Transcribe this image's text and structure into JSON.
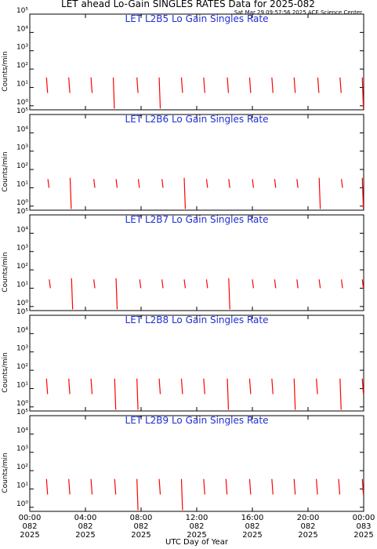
{
  "title": "LET ahead Lo-Gain SINGLES RATES Data for 2025-082",
  "timestamp": "Sat Mar 29 09:57:56 2025 ACE Science Center",
  "xlabel": "UTC Day of Year",
  "chart_data": [
    {
      "type": "line",
      "title": "LET L2B5 Lo Gain Singles Rate",
      "ylabel": "Counts/min",
      "color": "#ff0000",
      "log_y": true,
      "xlim": [
        0,
        24
      ],
      "xticks": [
        0,
        4,
        8,
        12,
        16,
        20,
        24
      ],
      "ylim": [
        0.6,
        100000
      ],
      "yticks": [
        {
          "value": 1,
          "label": "10⁰"
        },
        {
          "value": 10,
          "label": "10¹"
        },
        {
          "value": 100,
          "label": "10²"
        },
        {
          "value": 1000,
          "label": "10³"
        },
        {
          "value": 10000,
          "label": "10⁴"
        },
        {
          "value": 100000,
          "label": "10⁵"
        }
      ],
      "x": [
        1.2,
        1.28,
        1.28,
        2.8,
        2.88,
        2.88,
        4.4,
        4.48,
        4.48,
        6.0,
        6.08,
        6.08,
        7.7,
        7.78,
        7.78,
        9.3,
        9.38,
        9.38,
        10.9,
        10.98,
        10.98,
        12.5,
        12.58,
        12.58,
        14.2,
        14.28,
        14.28,
        15.8,
        15.88,
        15.88,
        17.4,
        17.48,
        17.48,
        19.0,
        19.08,
        19.08,
        20.7,
        20.78,
        20.78,
        22.3,
        22.38,
        22.38,
        23.9,
        23.98,
        23.98
      ],
      "values": [
        35,
        5,
        null,
        35,
        5,
        null,
        35,
        5,
        null,
        35,
        0.7,
        null,
        35,
        5,
        null,
        35,
        0.7,
        null,
        35,
        5,
        null,
        35,
        5,
        null,
        35,
        5,
        null,
        35,
        5,
        null,
        35,
        5,
        null,
        35,
        5,
        null,
        35,
        5,
        null,
        35,
        5,
        null,
        35,
        0.7,
        null
      ]
    },
    {
      "type": "line",
      "title": "LET L2B6 Lo Gain Singles Rate",
      "ylabel": "Counts/min",
      "color": "#ff0000",
      "log_y": true,
      "xlim": [
        0,
        24
      ],
      "xticks": [
        0,
        4,
        8,
        12,
        16,
        20,
        24
      ],
      "ylim": [
        0.6,
        100000
      ],
      "yticks": [
        {
          "value": 1,
          "label": "10⁰"
        },
        {
          "value": 10,
          "label": "10¹"
        },
        {
          "value": 100,
          "label": "10²"
        },
        {
          "value": 1000,
          "label": "10³"
        },
        {
          "value": 10000,
          "label": "10⁴"
        },
        {
          "value": 100000,
          "label": "10⁵"
        }
      ],
      "x": [
        1.3,
        1.38,
        1.38,
        2.9,
        2.98,
        2.98,
        4.6,
        4.68,
        4.68,
        6.2,
        6.28,
        6.28,
        7.8,
        7.88,
        7.88,
        9.5,
        9.58,
        9.58,
        11.1,
        11.18,
        11.18,
        12.7,
        12.78,
        12.78,
        14.3,
        14.38,
        14.38,
        16.0,
        16.08,
        16.08,
        17.6,
        17.68,
        17.68,
        19.2,
        19.28,
        19.28,
        20.8,
        20.88,
        20.88,
        22.4,
        22.48,
        22.48,
        23.9,
        23.98,
        23.98
      ],
      "values": [
        30,
        10,
        null,
        35,
        0.7,
        null,
        30,
        10,
        null,
        30,
        10,
        null,
        30,
        10,
        null,
        30,
        10,
        null,
        35,
        0.7,
        null,
        30,
        10,
        null,
        30,
        10,
        null,
        30,
        10,
        null,
        30,
        10,
        null,
        30,
        10,
        null,
        35,
        0.7,
        null,
        30,
        10,
        null,
        35,
        0.7,
        null
      ]
    },
    {
      "type": "line",
      "title": "LET L2B7 Lo Gain Singles Rate",
      "ylabel": "Counts/min",
      "color": "#ff0000",
      "log_y": true,
      "xlim": [
        0,
        24
      ],
      "xticks": [
        0,
        4,
        8,
        12,
        16,
        20,
        24
      ],
      "ylim": [
        0.6,
        100000
      ],
      "yticks": [
        {
          "value": 1,
          "label": "10⁰"
        },
        {
          "value": 10,
          "label": "10¹"
        },
        {
          "value": 100,
          "label": "10²"
        },
        {
          "value": 1000,
          "label": "10³"
        },
        {
          "value": 10000,
          "label": "10⁴"
        },
        {
          "value": 100000,
          "label": "10⁵"
        }
      ],
      "x": [
        1.4,
        1.48,
        1.48,
        3.0,
        3.08,
        3.08,
        4.6,
        4.68,
        4.68,
        6.2,
        6.28,
        6.28,
        7.9,
        7.98,
        7.98,
        9.5,
        9.58,
        9.58,
        11.1,
        11.18,
        11.18,
        12.7,
        12.78,
        12.78,
        14.3,
        14.38,
        14.38,
        16.0,
        16.08,
        16.08,
        17.6,
        17.68,
        17.68,
        19.2,
        19.28,
        19.28,
        20.8,
        20.88,
        20.88,
        22.4,
        22.48,
        22.48,
        23.9,
        23.98,
        23.98
      ],
      "values": [
        30,
        10,
        null,
        35,
        0.7,
        null,
        30,
        10,
        null,
        35,
        0.7,
        null,
        30,
        10,
        null,
        30,
        10,
        null,
        30,
        10,
        null,
        30,
        10,
        null,
        35,
        0.7,
        null,
        30,
        10,
        null,
        30,
        10,
        null,
        30,
        10,
        null,
        30,
        10,
        null,
        30,
        10,
        null,
        30,
        10,
        null
      ]
    },
    {
      "type": "line",
      "title": "LET L2B8 Lo Gain Singles Rate",
      "ylabel": "Counts/min",
      "color": "#ff0000",
      "log_y": true,
      "xlim": [
        0,
        24
      ],
      "xticks": [
        0,
        4,
        8,
        12,
        16,
        20,
        24
      ],
      "ylim": [
        0.6,
        100000
      ],
      "yticks": [
        {
          "value": 1,
          "label": "10⁰"
        },
        {
          "value": 10,
          "label": "10¹"
        },
        {
          "value": 100,
          "label": "10²"
        },
        {
          "value": 1000,
          "label": "10³"
        },
        {
          "value": 10000,
          "label": "10⁴"
        },
        {
          "value": 100000,
          "label": "10⁵"
        }
      ],
      "x": [
        1.2,
        1.28,
        1.28,
        2.8,
        2.88,
        2.88,
        4.4,
        4.48,
        4.48,
        6.1,
        6.18,
        6.18,
        7.7,
        7.78,
        7.78,
        9.3,
        9.38,
        9.38,
        10.9,
        10.98,
        10.98,
        12.5,
        12.58,
        12.58,
        14.2,
        14.28,
        14.28,
        15.8,
        15.88,
        15.88,
        17.4,
        17.48,
        17.48,
        19.0,
        19.08,
        19.08,
        20.6,
        20.68,
        20.68,
        22.3,
        22.38,
        22.38,
        23.9,
        23.98,
        23.98
      ],
      "values": [
        35,
        5,
        null,
        35,
        5,
        null,
        35,
        5,
        null,
        35,
        0.7,
        null,
        35,
        0.7,
        null,
        35,
        5,
        null,
        35,
        5,
        null,
        35,
        5,
        null,
        35,
        0.7,
        null,
        35,
        5,
        null,
        35,
        5,
        null,
        35,
        0.7,
        null,
        35,
        5,
        null,
        35,
        0.7,
        null,
        35,
        5,
        null
      ]
    },
    {
      "type": "line",
      "title": "LET L2B9 Lo Gain Singles Rate",
      "ylabel": "Counts/min",
      "color": "#ff0000",
      "log_y": true,
      "xlim": [
        0,
        24
      ],
      "xticks": [
        {
          "value": 0,
          "label": [
            "00:00",
            "082",
            "2025"
          ]
        },
        {
          "value": 4,
          "label": [
            "04:00",
            "082",
            "2025"
          ]
        },
        {
          "value": 8,
          "label": [
            "08:00",
            "082",
            "2025"
          ]
        },
        {
          "value": 12,
          "label": [
            "12:00",
            "082",
            "2025"
          ]
        },
        {
          "value": 16,
          "label": [
            "16:00",
            "082",
            "2025"
          ]
        },
        {
          "value": 20,
          "label": [
            "20:00",
            "082",
            "2025"
          ]
        },
        {
          "value": 24,
          "label": [
            "00:00",
            "083",
            "2025"
          ]
        }
      ],
      "ylim": [
        0.6,
        100000
      ],
      "yticks": [
        {
          "value": 1,
          "label": "10⁰"
        },
        {
          "value": 10,
          "label": "10¹"
        },
        {
          "value": 100,
          "label": "10²"
        },
        {
          "value": 1000,
          "label": "10³"
        },
        {
          "value": 10000,
          "label": "10⁴"
        },
        {
          "value": 100000,
          "label": "10⁵"
        }
      ],
      "x": [
        1.2,
        1.28,
        1.28,
        2.8,
        2.88,
        2.88,
        4.4,
        4.48,
        4.48,
        6.1,
        6.18,
        6.18,
        7.7,
        7.78,
        7.78,
        9.3,
        9.38,
        9.38,
        10.9,
        10.98,
        10.98,
        12.5,
        12.58,
        12.58,
        14.1,
        14.18,
        14.18,
        15.8,
        15.88,
        15.88,
        17.4,
        17.48,
        17.48,
        19.0,
        19.08,
        19.08,
        20.6,
        20.68,
        20.68,
        22.2,
        22.28,
        22.28,
        23.9,
        23.98,
        23.98
      ],
      "values": [
        35,
        5,
        null,
        35,
        5,
        null,
        35,
        5,
        null,
        35,
        5,
        null,
        35,
        0.7,
        null,
        35,
        5,
        null,
        35,
        0.7,
        null,
        35,
        5,
        null,
        35,
        5,
        null,
        35,
        5,
        null,
        35,
        5,
        null,
        35,
        5,
        null,
        35,
        5,
        null,
        35,
        5,
        null,
        35,
        5,
        null
      ]
    }
  ]
}
